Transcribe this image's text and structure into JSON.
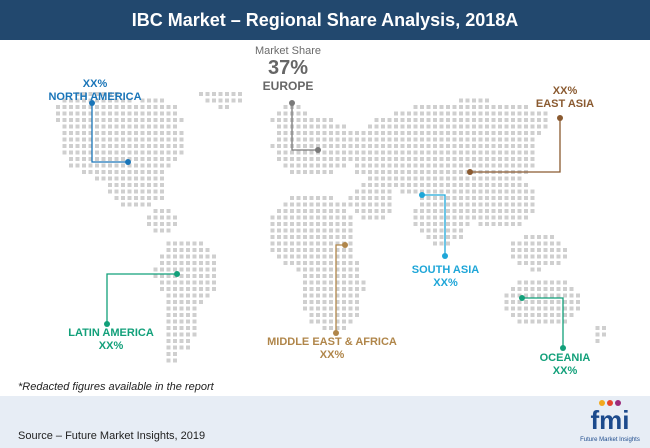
{
  "title": "IBC Market – Regional Share Analysis, 2018A",
  "chart_data": {
    "type": "map",
    "title": "IBC Market – Regional Share Analysis, 2018A",
    "regions": [
      {
        "name": "NORTH AMERICA",
        "value": "XX%",
        "color": "#1a75b8"
      },
      {
        "name": "EUROPE",
        "value": "37%",
        "label": "Market Share",
        "color": "#7a7a7a"
      },
      {
        "name": "EAST ASIA",
        "value": "XX%",
        "color": "#8a5a30"
      },
      {
        "name": "SOUTH ASIA",
        "value": "XX%",
        "color": "#1ea6d8"
      },
      {
        "name": "LATIN AMERICA",
        "value": "XX%",
        "color": "#12a07a"
      },
      {
        "name": "MIDDLE EAST & AFRICA",
        "value": "XX%",
        "color": "#b0864a"
      },
      {
        "name": "OCEANIA",
        "value": "XX%",
        "color": "#12a07a"
      }
    ]
  },
  "note": "*Redacted figures available in the report",
  "source": "Source – Future Market Insights, 2019",
  "logo": {
    "text": "fmi",
    "tagline": "Future Market Insights"
  },
  "colors": {
    "header": "#22486e",
    "dots": "#cfcfcf",
    "footer": "#e7edf5"
  }
}
